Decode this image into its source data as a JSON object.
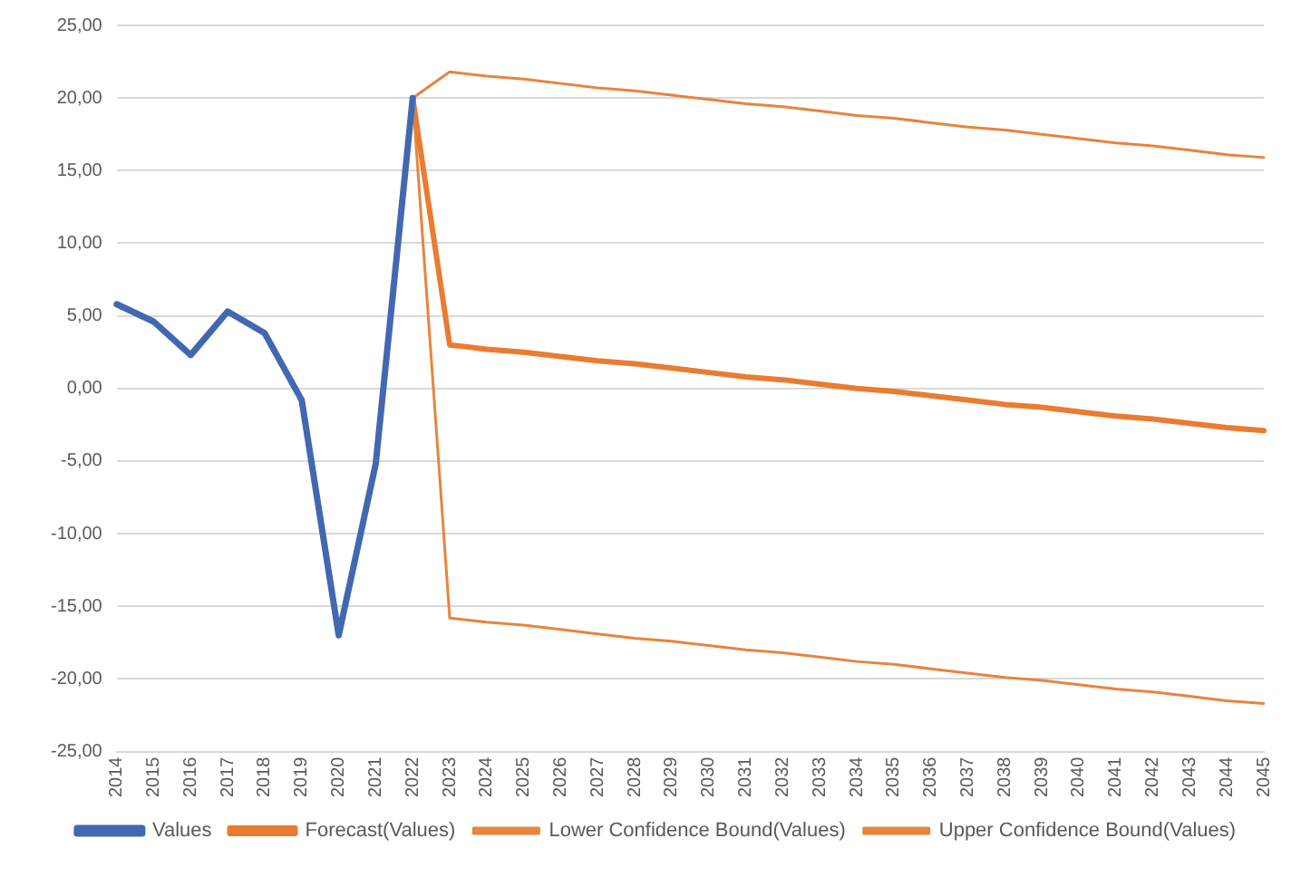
{
  "chart_data": {
    "type": "line",
    "categories": [
      "2014",
      "2015",
      "2016",
      "2017",
      "2018",
      "2019",
      "2020",
      "2021",
      "2022",
      "2023",
      "2024",
      "2025",
      "2026",
      "2027",
      "2028",
      "2029",
      "2030",
      "2031",
      "2032",
      "2033",
      "2034",
      "2035",
      "2036",
      "2037",
      "2038",
      "2039",
      "2040",
      "2041",
      "2042",
      "2043",
      "2044",
      "2045"
    ],
    "series": [
      {
        "name": "Values",
        "color": "#4168b0",
        "values": [
          5.8,
          4.6,
          2.3,
          5.3,
          3.8,
          -0.8,
          -17.0,
          -5.2,
          20.0,
          null,
          null,
          null,
          null,
          null,
          null,
          null,
          null,
          null,
          null,
          null,
          null,
          null,
          null,
          null,
          null,
          null,
          null,
          null,
          null,
          null,
          null,
          null
        ]
      },
      {
        "name": "Forecast(Values)",
        "color": "#e97c30",
        "values": [
          null,
          null,
          null,
          null,
          null,
          null,
          null,
          null,
          20.0,
          3.0,
          2.7,
          2.5,
          2.2,
          1.9,
          1.7,
          1.4,
          1.1,
          0.8,
          0.6,
          0.3,
          0.0,
          -0.2,
          -0.5,
          -0.8,
          -1.1,
          -1.3,
          -1.6,
          -1.9,
          -2.1,
          -2.4,
          -2.7,
          -2.9
        ]
      },
      {
        "name": "Lower Confidence Bound(Values)",
        "color": "#e5853f",
        "values": [
          null,
          null,
          null,
          null,
          null,
          null,
          null,
          null,
          20.0,
          -15.8,
          -16.1,
          -16.3,
          -16.6,
          -16.9,
          -17.2,
          -17.4,
          -17.7,
          -18.0,
          -18.2,
          -18.5,
          -18.8,
          -19.0,
          -19.3,
          -19.6,
          -19.9,
          -20.1,
          -20.4,
          -20.7,
          -20.9,
          -21.2,
          -21.5,
          -21.7
        ]
      },
      {
        "name": "Upper Confidence Bound(Values)",
        "color": "#e5853f",
        "values": [
          null,
          null,
          null,
          null,
          null,
          null,
          null,
          null,
          20.0,
          21.8,
          21.5,
          21.3,
          21.0,
          20.7,
          20.5,
          20.2,
          19.9,
          19.6,
          19.4,
          19.1,
          18.8,
          18.6,
          18.3,
          18.0,
          17.8,
          17.5,
          17.2,
          16.9,
          16.7,
          16.4,
          16.1,
          15.9
        ]
      }
    ],
    "ylim": [
      -25,
      25
    ],
    "yticks": [
      {
        "value": -25,
        "label": "-25,00"
      },
      {
        "value": -20,
        "label": "-20,00"
      },
      {
        "value": -15,
        "label": "-15,00"
      },
      {
        "value": -10,
        "label": "-10,00"
      },
      {
        "value": -5,
        "label": "-5,00"
      },
      {
        "value": 0,
        "label": "0,00"
      },
      {
        "value": 5,
        "label": "5,00"
      },
      {
        "value": 10,
        "label": "10,00"
      },
      {
        "value": 15,
        "label": "15,00"
      },
      {
        "value": 20,
        "label": "20,00"
      },
      {
        "value": 25,
        "label": "25,00"
      }
    ],
    "grid": "y",
    "legend": "bottom",
    "marker": "none",
    "line_style": "solid"
  }
}
